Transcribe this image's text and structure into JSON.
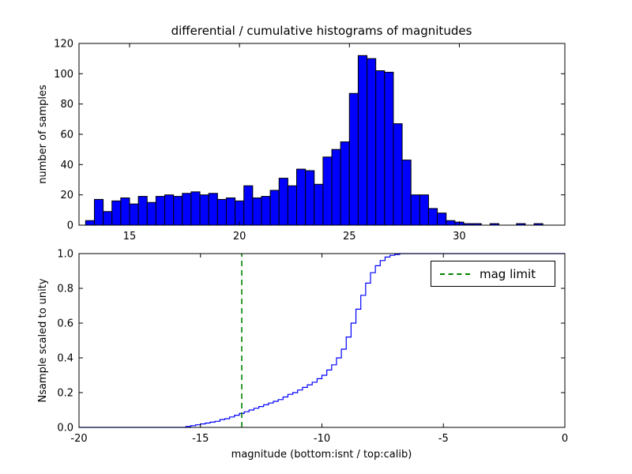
{
  "title": "differential / cumulative histograms of magnitudes",
  "colors": {
    "background": "#ffffff",
    "bar_fill": "#0000ff",
    "bar_edge": "#000000",
    "cumulative_line": "#0000ff",
    "mag_limit_line": "#008000",
    "axis": "#000000"
  },
  "legend": {
    "label": "mag limit",
    "position": "upper right"
  },
  "chart_data": [
    {
      "type": "bar",
      "title": "differential / cumulative histograms of magnitudes",
      "ylabel": "number of samples",
      "xlabel": "",
      "bin_start": 13.0,
      "bin_width": 0.4,
      "values": [
        3,
        17,
        9,
        16,
        18,
        14,
        19,
        15,
        19,
        20,
        19,
        21,
        22,
        20,
        21,
        17,
        18,
        16,
        26,
        18,
        19,
        23,
        31,
        26,
        37,
        36,
        27,
        45,
        50,
        55,
        87,
        112,
        110,
        102,
        101,
        67,
        43,
        20,
        20,
        11,
        8,
        3,
        2,
        1,
        1,
        0,
        1,
        0,
        0,
        1,
        0,
        1
      ],
      "xlim": [
        12.7,
        34.8
      ],
      "ylim": [
        0,
        120
      ],
      "xticks": [
        15,
        20,
        25,
        30
      ],
      "xtick_labels": [
        "15",
        "20",
        "25",
        "30"
      ],
      "yticks": [
        0,
        20,
        40,
        60,
        80,
        100,
        120
      ],
      "ytick_labels": [
        "0",
        "20",
        "40",
        "60",
        "80",
        "100",
        "120"
      ],
      "grid": false,
      "bar_color": "#0000ff",
      "bar_edge_color": "#000000"
    },
    {
      "type": "line",
      "step": true,
      "title": "",
      "ylabel": "Nsample scaled to unity",
      "xlabel": "magnitude (bottom:isnt / top:calib)",
      "xlim": [
        -20,
        0
      ],
      "ylim": [
        0,
        1
      ],
      "xticks": [
        -20,
        -15,
        -10,
        -5,
        0
      ],
      "xtick_labels": [
        "-20",
        "-15",
        "-10",
        "-5",
        "0"
      ],
      "yticks": [
        0,
        0.2,
        0.4,
        0.6,
        0.8,
        1
      ],
      "ytick_labels": [
        "0.0",
        "0.2",
        "0.4",
        "0.6",
        "0.8",
        "1.0"
      ],
      "grid": false,
      "line_color": "#0000ff",
      "mag_limit": {
        "x": -13.3,
        "label": "mag limit",
        "color": "#008000",
        "linestyle": "dashed"
      },
      "points": [
        [
          -20,
          0
        ],
        [
          -15.8,
          0
        ],
        [
          -15.6,
          0.005
        ],
        [
          -15.4,
          0.01
        ],
        [
          -15.2,
          0.015
        ],
        [
          -15.0,
          0.02
        ],
        [
          -14.8,
          0.025
        ],
        [
          -14.6,
          0.03
        ],
        [
          -14.4,
          0.035
        ],
        [
          -14.2,
          0.045
        ],
        [
          -14.0,
          0.05
        ],
        [
          -13.8,
          0.06
        ],
        [
          -13.6,
          0.07
        ],
        [
          -13.4,
          0.08
        ],
        [
          -13.2,
          0.09
        ],
        [
          -13.0,
          0.1
        ],
        [
          -12.8,
          0.11
        ],
        [
          -12.6,
          0.12
        ],
        [
          -12.4,
          0.13
        ],
        [
          -12.2,
          0.14
        ],
        [
          -12.0,
          0.15
        ],
        [
          -11.8,
          0.16
        ],
        [
          -11.6,
          0.175
        ],
        [
          -11.4,
          0.19
        ],
        [
          -11.2,
          0.2
        ],
        [
          -11.0,
          0.215
        ],
        [
          -10.8,
          0.23
        ],
        [
          -10.6,
          0.245
        ],
        [
          -10.4,
          0.26
        ],
        [
          -10.2,
          0.28
        ],
        [
          -10.0,
          0.3
        ],
        [
          -9.8,
          0.33
        ],
        [
          -9.6,
          0.36
        ],
        [
          -9.4,
          0.4
        ],
        [
          -9.2,
          0.45
        ],
        [
          -9.0,
          0.52
        ],
        [
          -8.8,
          0.6
        ],
        [
          -8.6,
          0.68
        ],
        [
          -8.4,
          0.76
        ],
        [
          -8.2,
          0.83
        ],
        [
          -8.0,
          0.89
        ],
        [
          -7.8,
          0.93
        ],
        [
          -7.6,
          0.96
        ],
        [
          -7.4,
          0.98
        ],
        [
          -7.2,
          0.99
        ],
        [
          -7.0,
          0.995
        ],
        [
          -6.8,
          1.0
        ],
        [
          0,
          1.0
        ]
      ]
    }
  ]
}
